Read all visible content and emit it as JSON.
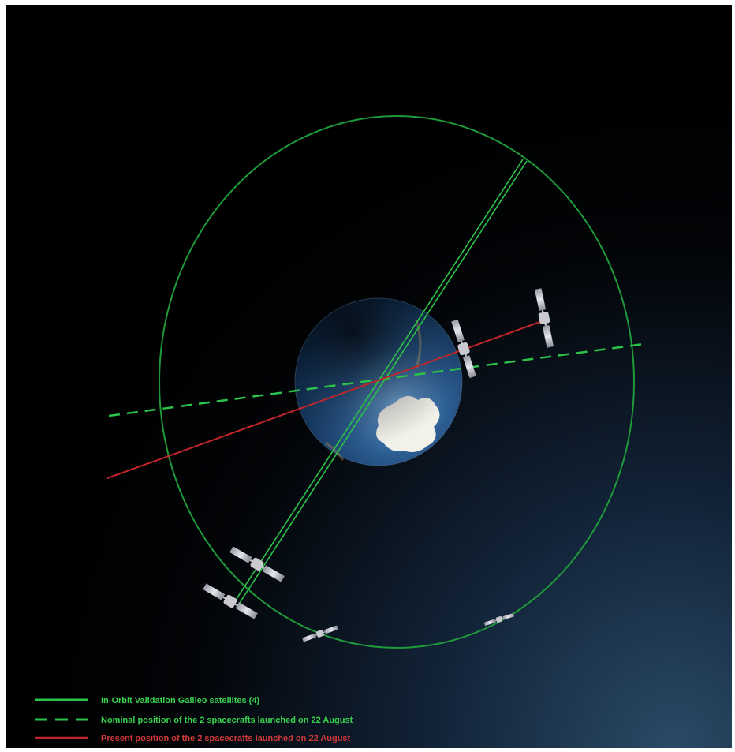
{
  "diagram": {
    "colors": {
      "background": "#000000",
      "orbit": "#1f9a3a",
      "iov_line": "#2cc34a",
      "nominal_line": "#2cc34a",
      "present_line": "#c0262a",
      "legend_green_text": "#3ad24f",
      "legend_red_text": "#d23a3a"
    },
    "legend": [
      {
        "label": "In-Orbit Validation Galileo satellites (4)",
        "style": "solid",
        "color": "#2cc34a"
      },
      {
        "label": "Nominal position of the 2 spacecrafts launched on 22 August",
        "style": "dashed",
        "color": "#2cc34a"
      },
      {
        "label": "Present position of the 2 spacecrafts launched on 22 August",
        "style": "solid",
        "color": "#c0262a"
      }
    ]
  }
}
